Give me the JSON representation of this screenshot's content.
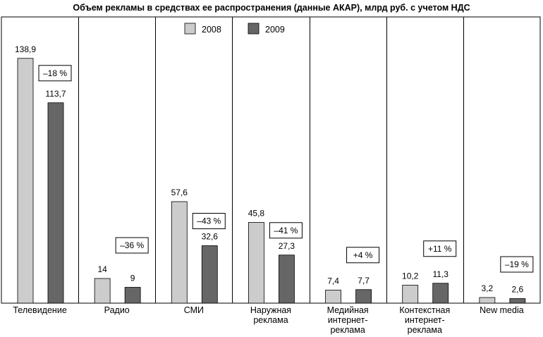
{
  "chart_data": {
    "type": "bar",
    "title": "Объем рекламы в средствах ее распространения (данные АКАР), млрд руб. с учетом НДС",
    "categories": [
      [
        "Телевидение"
      ],
      [
        "Радио"
      ],
      [
        "СМИ"
      ],
      [
        "Наружная",
        "реклама"
      ],
      [
        "Медийная",
        "интернет-",
        "реклама"
      ],
      [
        "Контекстная",
        "интернет-",
        "реклама"
      ],
      [
        "New media"
      ]
    ],
    "series": [
      {
        "name": "2008",
        "color": "#cccccc",
        "values": [
          138.9,
          14,
          57.6,
          45.8,
          7.4,
          10.2,
          3.2
        ],
        "labels": [
          "138,9",
          "14",
          "57,6",
          "45,8",
          "7,4",
          "10,2",
          "3,2"
        ]
      },
      {
        "name": "2009",
        "color": "#666666",
        "values": [
          113.7,
          9,
          32.6,
          27.3,
          7.7,
          11.3,
          2.6
        ],
        "labels": [
          "113,7",
          "9",
          "32,6",
          "27,3",
          "7,7",
          "11,3",
          "2,6"
        ]
      }
    ],
    "change_labels": [
      "–18 %",
      "–36 %",
      "–43 %",
      "–41 %",
      "+4 %",
      "+11 %",
      "–19 %"
    ],
    "ylim": [
      0,
      150
    ],
    "legend_position": "top-center",
    "grid": false
  }
}
